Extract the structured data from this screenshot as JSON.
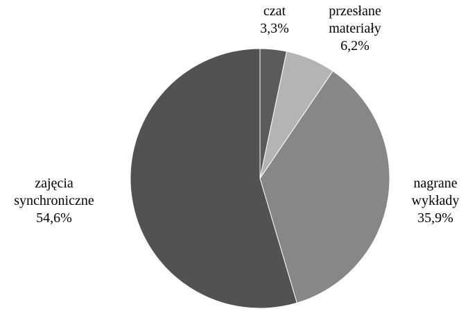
{
  "chart_data": {
    "type": "pie",
    "categories": [
      "czat",
      "przesłane materiały",
      "nagrane wykłady",
      "zajęcia synchroniczne"
    ],
    "values": [
      3.3,
      6.2,
      35.9,
      54.6
    ],
    "value_labels": [
      "3,3%",
      "6,2%",
      "35,9%",
      "54,6%"
    ],
    "colors": [
      "#5b5b5b",
      "#b4b4b4",
      "#878787",
      "#525252"
    ]
  }
}
